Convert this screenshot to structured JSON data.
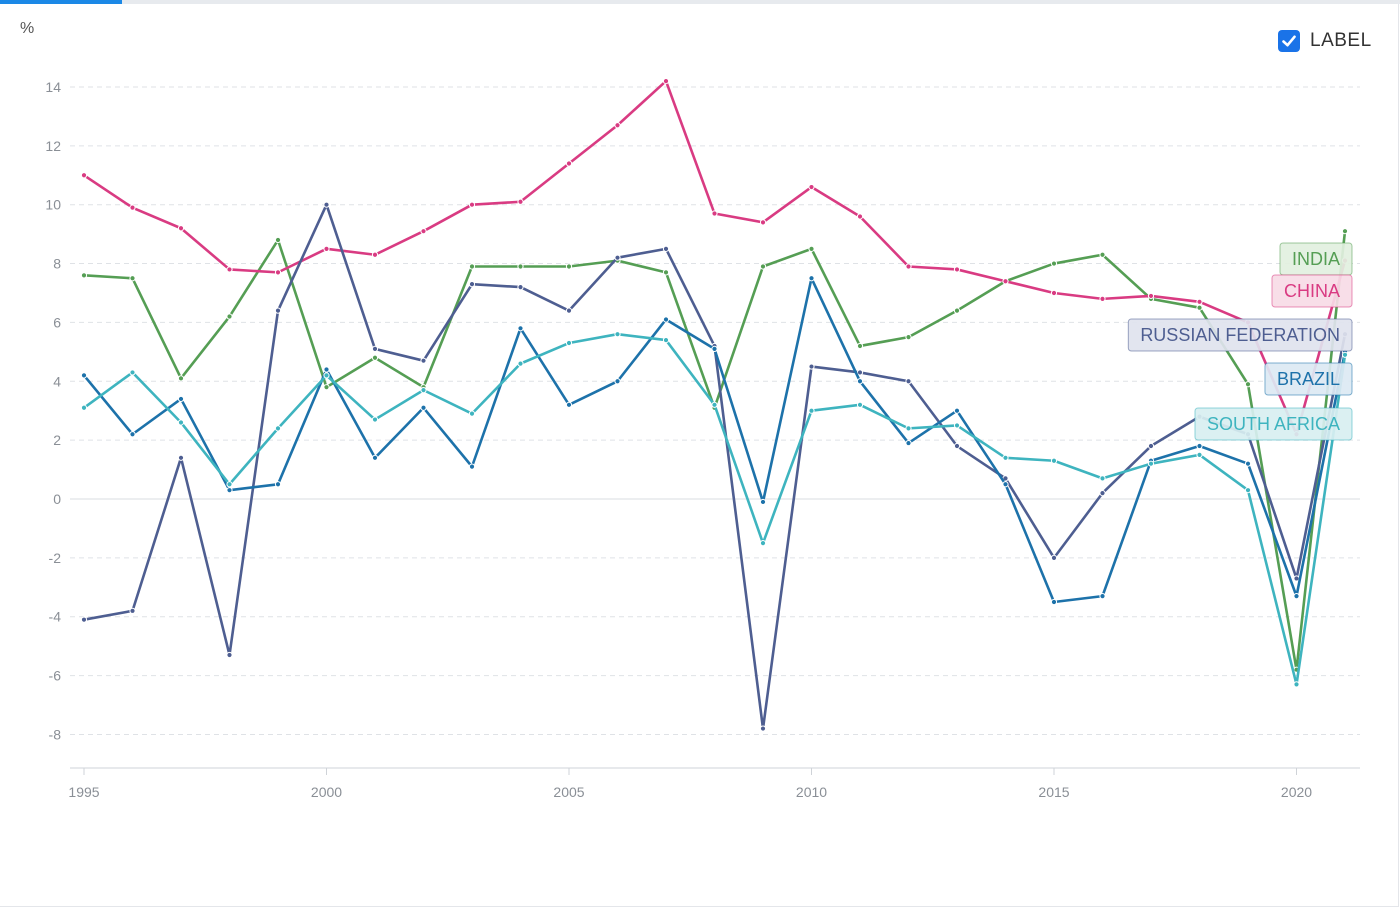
{
  "toggle": {
    "label": "LABEL",
    "checked": true,
    "color": "#1a73e8"
  },
  "chart_data": {
    "type": "line",
    "ylabel": "%",
    "ylim": [
      -9,
      14.5
    ],
    "xlim": [
      1995,
      2021
    ],
    "x_ticks": [
      1995,
      2000,
      2005,
      2010,
      2015,
      2020
    ],
    "y_ticks": [
      -8,
      -6,
      -4,
      -2,
      0,
      2,
      4,
      6,
      8,
      10,
      12,
      14
    ],
    "grid": true,
    "x": [
      1995,
      1996,
      1997,
      1998,
      1999,
      2000,
      2001,
      2002,
      2003,
      2004,
      2005,
      2006,
      2007,
      2008,
      2009,
      2010,
      2011,
      2012,
      2013,
      2014,
      2015,
      2016,
      2017,
      2018,
      2019,
      2020,
      2021
    ],
    "series": [
      {
        "name": "INDIA",
        "color": "#559e54",
        "label_bg": "#e2f0e0",
        "values": [
          7.6,
          7.5,
          4.1,
          6.2,
          8.8,
          3.8,
          4.8,
          3.8,
          7.9,
          7.9,
          7.9,
          8.1,
          7.7,
          3.1,
          7.9,
          8.5,
          5.2,
          5.5,
          6.4,
          7.4,
          8.0,
          8.3,
          6.8,
          6.5,
          3.9,
          -5.8,
          9.1
        ]
      },
      {
        "name": "CHINA",
        "color": "#d93b82",
        "label_bg": "#f7dbe6",
        "values": [
          11.0,
          9.9,
          9.2,
          7.8,
          7.7,
          8.5,
          8.3,
          9.1,
          10.0,
          10.1,
          11.4,
          12.7,
          14.2,
          9.7,
          9.4,
          10.6,
          9.6,
          7.9,
          7.8,
          7.4,
          7.0,
          6.8,
          6.9,
          6.7,
          6.0,
          2.2,
          8.1
        ]
      },
      {
        "name": "RUSSIAN FEDERATION",
        "color": "#4e5e91",
        "label_bg": "#e0e3ee",
        "values": [
          -4.1,
          -3.8,
          1.4,
          -5.3,
          6.4,
          10.0,
          5.1,
          4.7,
          7.3,
          7.2,
          6.4,
          8.2,
          8.5,
          5.2,
          -7.8,
          4.5,
          4.3,
          4.0,
          1.8,
          0.7,
          -2.0,
          0.2,
          1.8,
          2.8,
          2.2,
          -2.7,
          5.6
        ]
      },
      {
        "name": "BRAZIL",
        "color": "#1d72aa",
        "label_bg": "#dce9f3",
        "values": [
          4.2,
          2.2,
          3.4,
          0.3,
          0.5,
          4.4,
          1.4,
          3.1,
          1.1,
          5.8,
          3.2,
          4.0,
          6.1,
          5.1,
          -0.1,
          7.5,
          4.0,
          1.9,
          3.0,
          0.5,
          -3.5,
          -3.3,
          1.3,
          1.8,
          1.2,
          -3.3,
          5.0
        ]
      },
      {
        "name": "SOUTH AFRICA",
        "color": "#3eb4bf",
        "label_bg": "#d8eff1",
        "values": [
          3.1,
          4.3,
          2.6,
          0.5,
          2.4,
          4.2,
          2.7,
          3.7,
          2.9,
          4.6,
          5.3,
          5.6,
          5.4,
          3.2,
          -1.5,
          3.0,
          3.2,
          2.4,
          2.5,
          1.4,
          1.3,
          0.7,
          1.2,
          1.5,
          0.3,
          -6.3,
          4.9
        ]
      }
    ]
  }
}
